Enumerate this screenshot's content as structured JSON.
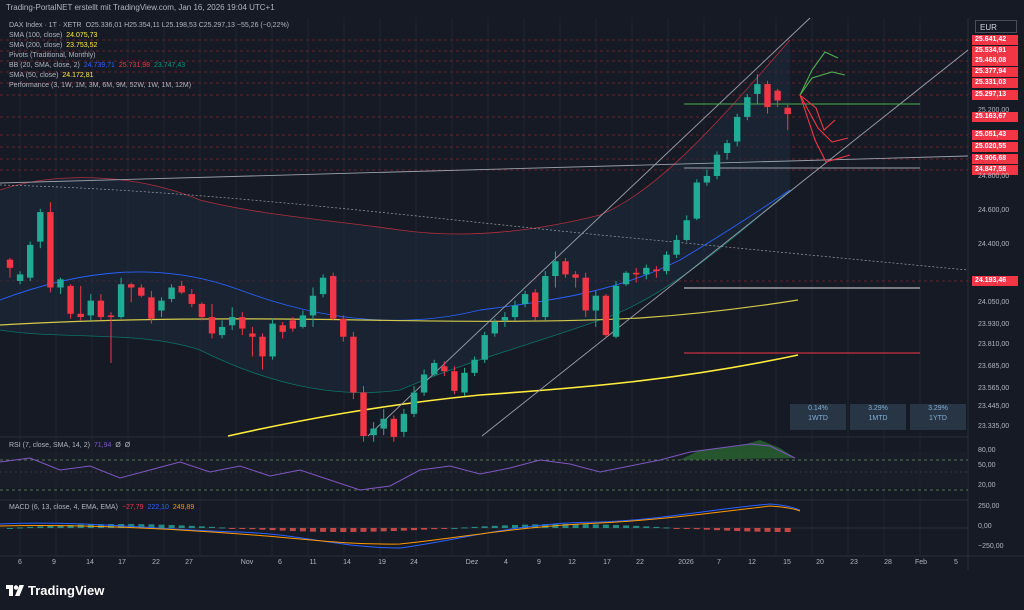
{
  "header": {
    "attribution": "Trading-PortalNET erstellt mit TradingView.com, Jan 16, 2026 19:04 UTC+1"
  },
  "legend": {
    "main": "DAX Index · 1T · XETR",
    "ohlc": "O25.336,01  H25.354,11  L25.198,53  C25.297,13  −55,26 (−0,22%)",
    "sma100_label": "SMA (100, close)",
    "sma100_value": "24.075,73",
    "sma200_label": "SMA (200, close)",
    "sma200_value": "23.753,52",
    "pivots_label": "Pivots (Traditional, Monthly)",
    "bb_label": "BB (20, SMA, close, 2)",
    "bb_v1": "24.739,71",
    "bb_v2": "25.731,98",
    "bb_v3": "23.747,43",
    "sma50_label": "SMA (50, close)",
    "sma50_value": "24.172,81",
    "performance_label": "Performance (3, 1W, 1M, 3M, 6M, 9M, 52W, 1W, 1M, 12M)",
    "rsi_label": "RSI (7, close, SMA, 14, 2)",
    "rsi_v1": "71,94",
    "rsi_v2": "Ø",
    "rsi_v3": "Ø",
    "macd_label": "MACD (6, 13, close, 4, EMA, EMA)",
    "macd_v1": "−27,79",
    "macd_v2": "222,10",
    "macd_v3": "249,89"
  },
  "currency": "EUR",
  "performance": [
    {
      "pct": "0.14%",
      "label": "1WTD"
    },
    {
      "pct": "3.29%",
      "label": "1MTD"
    },
    {
      "pct": "3.29%",
      "label": "1YTD"
    }
  ],
  "price_tags": [
    {
      "text": "25.641,42",
      "color": "#f23645"
    },
    {
      "text": "25.534,91",
      "color": "#f23645"
    },
    {
      "text": "25.468,08",
      "color": "#f23645"
    },
    {
      "text": "25.377,94",
      "color": "#f23645"
    },
    {
      "text": "25.331,03",
      "color": "#f23645"
    },
    {
      "text": "25.297,13",
      "color": "#f23645"
    },
    {
      "text": "25.163,67",
      "color": "#f23645"
    },
    {
      "text": "25.051,43",
      "color": "#f23645"
    },
    {
      "text": "25.020,55",
      "color": "#f23645"
    },
    {
      "text": "24.906,68",
      "color": "#f23645"
    },
    {
      "text": "24.847,58",
      "color": "#f23645"
    },
    {
      "text": "24.193,46",
      "color": "#f23645"
    }
  ],
  "price_axis": [
    "25.200,00",
    "24.800,00",
    "24.600,00",
    "24.400,00",
    "24.050,00",
    "23.930,00",
    "23.810,00",
    "23.685,00",
    "23.565,00",
    "23.445,00",
    "23.335,00"
  ],
  "rsi_axis": [
    "80,00",
    "50,00",
    "20,00"
  ],
  "macd_axis": [
    "250,00",
    "0,00",
    "−250,00"
  ],
  "x_axis": [
    "6",
    "9",
    "14",
    "17",
    "22",
    "27",
    "Nov",
    "6",
    "11",
    "14",
    "19",
    "24",
    "Dez",
    "4",
    "9",
    "12",
    "17",
    "22",
    "2026",
    "7",
    "12",
    "15",
    "20",
    "23",
    "28",
    "Feb",
    "5"
  ],
  "logo": "TradingView",
  "chart_data": {
    "type": "candlestick",
    "instrument": "DAX Index",
    "ylim": [
      23335,
      25700
    ],
    "candles": [
      [
        24410,
        24360,
        24300,
        24420
      ],
      [
        24280,
        24320,
        24260,
        24340
      ],
      [
        24300,
        24500,
        24280,
        24520
      ],
      [
        24520,
        24700,
        24480,
        24720
      ],
      [
        24700,
        24240,
        24210,
        24760
      ],
      [
        24240,
        24290,
        24200,
        24300
      ],
      [
        24250,
        24080,
        24050,
        24260
      ],
      [
        24080,
        24060,
        24040,
        24250
      ],
      [
        24070,
        24160,
        24040,
        24200
      ],
      [
        24160,
        24060,
        24040,
        24200
      ],
      [
        24070,
        24060,
        23780,
        24090
      ],
      [
        24060,
        24260,
        24050,
        24300
      ],
      [
        24260,
        24240,
        24150,
        24270
      ],
      [
        24240,
        24190,
        24180,
        24260
      ],
      [
        24180,
        24050,
        24020,
        24220
      ],
      [
        24100,
        24160,
        24060,
        24180
      ],
      [
        24170,
        24240,
        24150,
        24260
      ],
      [
        24250,
        24210,
        24200,
        24280
      ],
      [
        24200,
        24140,
        24120,
        24230
      ],
      [
        24140,
        24060,
        24040,
        24150
      ],
      [
        24060,
        23960,
        23930,
        24140
      ],
      [
        23950,
        24000,
        23930,
        24040
      ],
      [
        24010,
        24060,
        23980,
        24120
      ],
      [
        24060,
        23990,
        23950,
        24090
      ],
      [
        23960,
        23940,
        23820,
        24000
      ],
      [
        23940,
        23820,
        23740,
        23960
      ],
      [
        23820,
        24020,
        23800,
        24050
      ],
      [
        24010,
        23970,
        23930,
        24030
      ],
      [
        24040,
        23990,
        23970,
        24060
      ],
      [
        24000,
        24070,
        23990,
        24100
      ],
      [
        24070,
        24190,
        24000,
        24240
      ],
      [
        24200,
        24300,
        24180,
        24320
      ],
      [
        24310,
        24050,
        24040,
        24330
      ],
      [
        24050,
        23940,
        23910,
        24070
      ],
      [
        23940,
        23600,
        23560,
        23970
      ],
      [
        23600,
        23335,
        23300,
        23640
      ],
      [
        23340,
        23380,
        23300,
        23420
      ],
      [
        23380,
        23440,
        23340,
        23500
      ],
      [
        23440,
        23330,
        23300,
        23460
      ],
      [
        23360,
        23470,
        23330,
        23500
      ],
      [
        23470,
        23600,
        23450,
        23640
      ],
      [
        23600,
        23710,
        23580,
        23740
      ],
      [
        23710,
        23780,
        23700,
        23800
      ],
      [
        23760,
        23730,
        23700,
        23790
      ],
      [
        23730,
        23610,
        23590,
        23760
      ],
      [
        23600,
        23720,
        23580,
        23750
      ],
      [
        23720,
        23800,
        23700,
        23820
      ],
      [
        23800,
        23950,
        23780,
        23970
      ],
      [
        23960,
        24030,
        23940,
        24050
      ],
      [
        24040,
        24060,
        24000,
        24090
      ],
      [
        24060,
        24130,
        24040,
        24160
      ],
      [
        24140,
        24200,
        24120,
        24220
      ],
      [
        24210,
        24060,
        24040,
        24230
      ],
      [
        24060,
        24310,
        24040,
        24340
      ],
      [
        24310,
        24400,
        24240,
        24460
      ],
      [
        24400,
        24320,
        24300,
        24420
      ],
      [
        24320,
        24300,
        24240,
        24340
      ],
      [
        24300,
        24100,
        24060,
        24330
      ],
      [
        24100,
        24190,
        24000,
        24220
      ],
      [
        24190,
        23950,
        23940,
        24200
      ],
      [
        23940,
        24250,
        23930,
        24280
      ],
      [
        24260,
        24330,
        24250,
        24340
      ],
      [
        24330,
        24320,
        24270,
        24360
      ],
      [
        24320,
        24360,
        24290,
        24380
      ],
      [
        24350,
        24340,
        24300,
        24370
      ],
      [
        24340,
        24440,
        24320,
        24460
      ],
      [
        24440,
        24530,
        24420,
        24560
      ],
      [
        24530,
        24650,
        24520,
        24680
      ],
      [
        24660,
        24880,
        24650,
        24900
      ],
      [
        24880,
        24920,
        24860,
        24960
      ],
      [
        24920,
        25050,
        24900,
        25070
      ],
      [
        25060,
        25120,
        25020,
        25140
      ],
      [
        25130,
        25280,
        25100,
        25300
      ],
      [
        25280,
        25400,
        25260,
        25420
      ],
      [
        25420,
        25480,
        25360,
        25540
      ],
      [
        25480,
        25340,
        25300,
        25500
      ],
      [
        25440,
        25380,
        25340,
        25450
      ],
      [
        25336.01,
        25297.13,
        25198.53,
        25354.11
      ]
    ]
  }
}
